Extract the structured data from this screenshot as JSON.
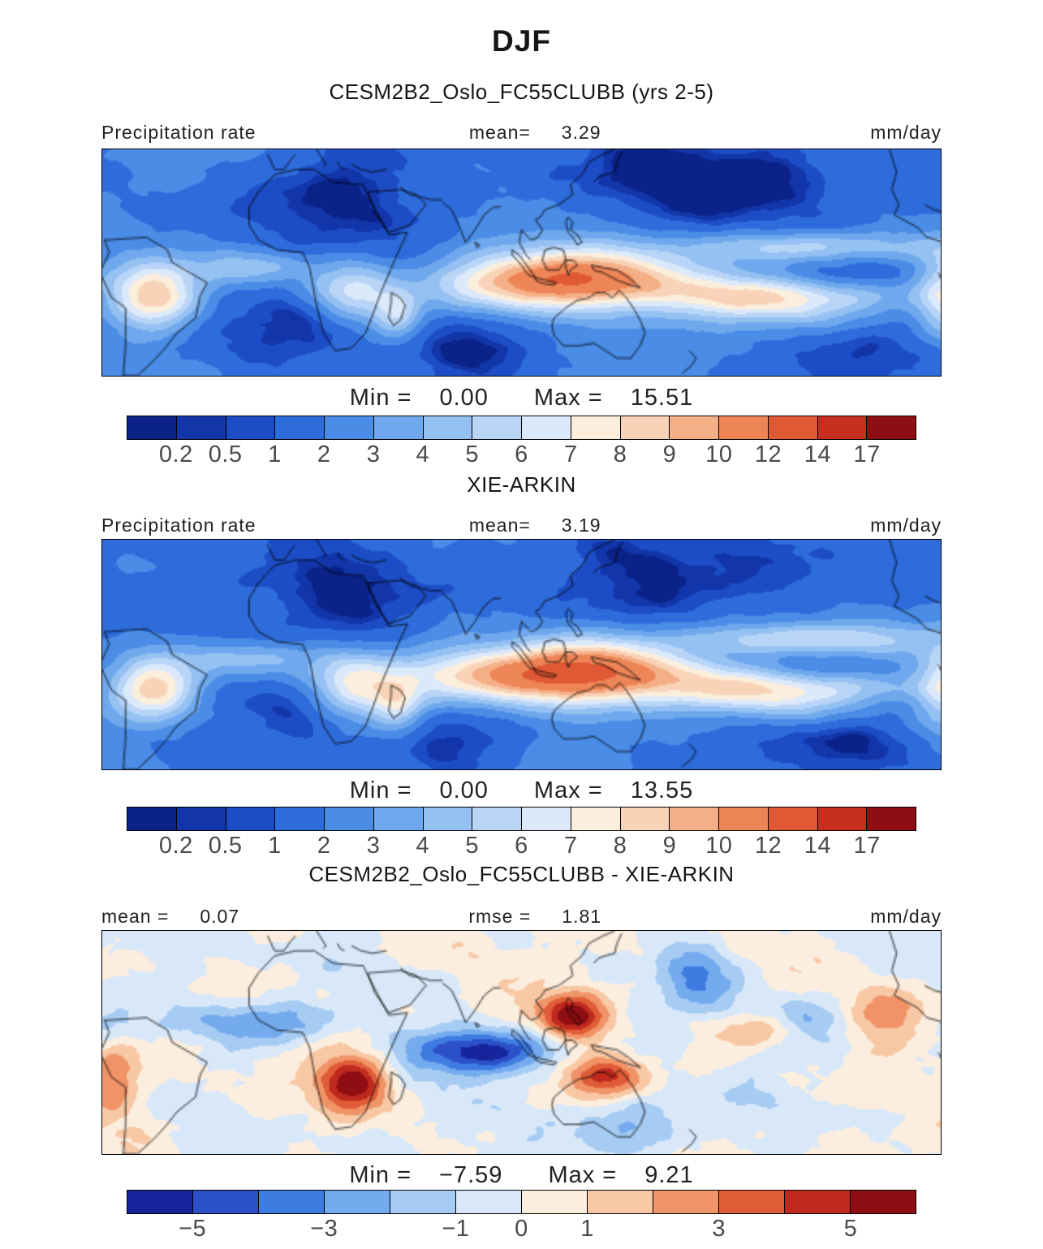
{
  "figure": {
    "title": "DJF"
  },
  "panels": [
    {
      "title": "CESM2B2_Oslo_FC55CLUBB (yrs 2-5)",
      "left_label": "Precipitation rate",
      "mean_label": "mean=",
      "mean_value": "3.29",
      "units_label": "mm/day",
      "min_label": "Min =",
      "min_value": "0.00",
      "max_label": "Max =",
      "max_value": "15.51"
    },
    {
      "title": "XIE-ARKIN",
      "left_label": "Precipitation rate",
      "mean_label": "mean=",
      "mean_value": "3.19",
      "units_label": "mm/day",
      "min_label": "Min =",
      "min_value": "0.00",
      "max_label": "Max =",
      "max_value": "13.55"
    },
    {
      "title": "CESM2B2_Oslo_FC55CLUBB - XIE-ARKIN",
      "mean_label": "mean =",
      "mean_value": "0.07",
      "rmse_label": "rmse =",
      "rmse_value": "1.81",
      "units_label": "mm/day",
      "min_label": "Min =",
      "min_value": "−7.59",
      "max_label": "Max =",
      "max_value": "9.21"
    }
  ],
  "colorbars": {
    "precip": {
      "tick_labels": [
        "0.2",
        "0.5",
        "1",
        "2",
        "3",
        "4",
        "5",
        "6",
        "7",
        "8",
        "9",
        "10",
        "12",
        "14",
        "17"
      ],
      "levels": [
        0.2,
        0.5,
        1,
        2,
        3,
        4,
        5,
        6,
        7,
        8,
        9,
        10,
        12,
        14,
        17
      ],
      "colors": [
        "#0b2288",
        "#1236aa",
        "#1d4dc6",
        "#2e6cdc",
        "#4a8ce6",
        "#6fa8ed",
        "#94c0f2",
        "#b8d4f7",
        "#dbe9fb",
        "#fbeedd",
        "#f9d3b7",
        "#f5af87",
        "#ee8557",
        "#e05935",
        "#c62e20",
        "#8e0e13"
      ]
    },
    "diff": {
      "tick_labels": [
        "−5",
        "−3",
        "−1",
        "0",
        "1",
        "3",
        "5"
      ],
      "label_boundary_indices": [
        1,
        3,
        5,
        6,
        7,
        9,
        11
      ],
      "levels": [
        -5,
        -4,
        -3,
        -2,
        -1,
        0,
        1,
        2,
        3,
        4,
        5
      ],
      "colors": [
        "#16259b",
        "#2b50c8",
        "#3f7ce2",
        "#74aaee",
        "#a6ccf4",
        "#d9e8f9",
        "#fceede",
        "#f8c8a5",
        "#f09468",
        "#e05c37",
        "#c0291e",
        "#8f0e13"
      ]
    }
  },
  "chart_data": [
    {
      "type": "heatmap",
      "title": "CESM2B2_Oslo_FC55CLUBB (yrs 2-5)",
      "field": "Precipitation rate",
      "season": "DJF",
      "units": "mm/day",
      "mean": 3.29,
      "min": 0.0,
      "max": 15.51,
      "contour_levels": [
        0.2,
        0.5,
        1,
        2,
        3,
        4,
        5,
        6,
        7,
        8,
        9,
        10,
        12,
        14,
        17
      ],
      "extent": "global lon/lat map with coastlines"
    },
    {
      "type": "heatmap",
      "title": "XIE-ARKIN",
      "field": "Precipitation rate",
      "season": "DJF",
      "units": "mm/day",
      "mean": 3.19,
      "min": 0.0,
      "max": 13.55,
      "contour_levels": [
        0.2,
        0.5,
        1,
        2,
        3,
        4,
        5,
        6,
        7,
        8,
        9,
        10,
        12,
        14,
        17
      ],
      "extent": "global lon/lat map with coastlines"
    },
    {
      "type": "heatmap",
      "title": "CESM2B2_Oslo_FC55CLUBB - XIE-ARKIN",
      "field": "Precipitation rate difference",
      "season": "DJF",
      "units": "mm/day",
      "mean": 0.07,
      "rmse": 1.81,
      "min": -7.59,
      "max": 9.21,
      "contour_levels": [
        -5,
        -3,
        -1,
        0,
        1,
        3,
        5
      ],
      "extent": "global lon/lat map with coastlines"
    }
  ]
}
